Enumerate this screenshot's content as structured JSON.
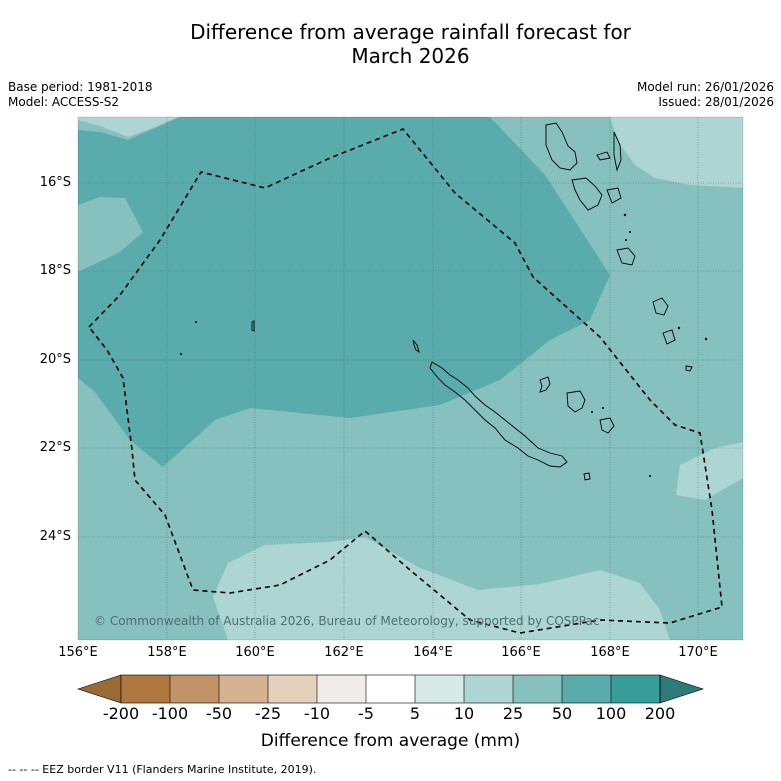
{
  "title_line1": "Difference from average rainfall forecast for",
  "title_line2": "March 2026",
  "base_period": "Base period: 1981-2018",
  "model": "Model: ACCESS-S2",
  "model_run": "Model run: 26/01/2026",
  "issued": "Issued: 28/01/2026",
  "lat_labels": [
    "16°S",
    "18°S",
    "20°S",
    "22°S",
    "24°S"
  ],
  "lon_labels": [
    "156°E",
    "158°E",
    "160°E",
    "162°E",
    "164°E",
    "166°E",
    "168°E",
    "170°E"
  ],
  "copyright": "© Commonwealth of Australia 2026, Bureau of Meteorology, supported by COSPPac",
  "colorbar": {
    "ticks": [
      "-200",
      "-100",
      "-50",
      "-25",
      "-10",
      "-5",
      "5",
      "10",
      "25",
      "50",
      "100",
      "200"
    ],
    "colors": [
      "#9b6936",
      "#b0773e",
      "#c39368",
      "#d4b292",
      "#e5d0bc",
      "#f0ece9",
      "#ffffff",
      "#d6eae8",
      "#acd5d3",
      "#86c1bf",
      "#5aabab",
      "#369d99",
      "#2d7a78"
    ],
    "title": "Difference from average (mm)"
  },
  "map_colors": {
    "light": "#acd5d3",
    "mid": "#86c1bf",
    "dark": "#5aabab"
  },
  "footnote": "--  --  -- EEZ border V11 (Flanders Marine Institute, 2019)."
}
